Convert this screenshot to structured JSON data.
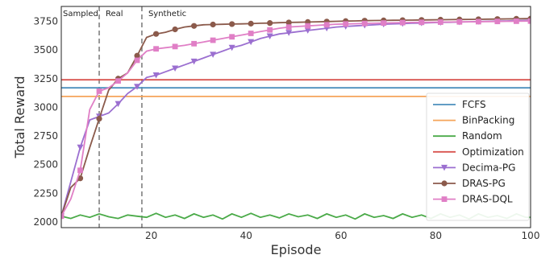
{
  "chart_data": {
    "type": "line",
    "title": "",
    "xlabel": "Episode",
    "ylabel": "Total Reward",
    "xlim": [
      1,
      100
    ],
    "ylim": [
      1950,
      3880
    ],
    "xticks": [
      20,
      40,
      60,
      80,
      100
    ],
    "yticks": [
      2000,
      2250,
      2500,
      2750,
      3000,
      3250,
      3500,
      3750
    ],
    "grid": false,
    "legend_position": "bottom-right",
    "phase_separators": [
      9,
      18
    ],
    "phase_labels": [
      "Sampled",
      "Real",
      "Synthetic"
    ],
    "series": [
      {
        "name": "FCFS",
        "color": "#4c8fbd",
        "marker": "none",
        "values_constant": 3170
      },
      {
        "name": "BinPacking",
        "color": "#f5a45a",
        "marker": "none",
        "values_constant": 3095
      },
      {
        "name": "Random",
        "color": "#4aaa48",
        "marker": "none",
        "x": [
          1,
          3,
          5,
          7,
          9,
          11,
          13,
          15,
          17,
          19,
          21,
          23,
          25,
          27,
          29,
          31,
          33,
          35,
          37,
          39,
          41,
          43,
          45,
          47,
          49,
          51,
          53,
          55,
          57,
          59,
          61,
          63,
          65,
          67,
          69,
          71,
          73,
          75,
          77,
          79,
          81,
          83,
          85,
          87,
          89,
          91,
          93,
          95,
          97,
          99,
          100
        ],
        "y": [
          2050,
          2030,
          2060,
          2040,
          2070,
          2045,
          2030,
          2060,
          2050,
          2040,
          2075,
          2040,
          2060,
          2030,
          2070,
          2040,
          2060,
          2025,
          2070,
          2040,
          2075,
          2040,
          2060,
          2035,
          2070,
          2045,
          2060,
          2030,
          2070,
          2040,
          2060,
          2025,
          2070,
          2040,
          2055,
          2030,
          2070,
          2040,
          2060,
          2030,
          2070,
          2040,
          2060,
          2025,
          2070,
          2040,
          2055,
          2030,
          2070,
          2040,
          2040
        ]
      },
      {
        "name": "Optimization",
        "color": "#d9534f",
        "marker": "none",
        "values_constant": 3240
      },
      {
        "name": "Decima-PG",
        "color": "#9b6fd0",
        "marker": "triangle-down",
        "x": [
          1,
          3,
          5,
          7,
          9,
          11,
          13,
          15,
          17,
          19,
          21,
          23,
          25,
          27,
          29,
          31,
          33,
          35,
          37,
          39,
          41,
          43,
          45,
          47,
          49,
          51,
          53,
          55,
          57,
          59,
          61,
          63,
          65,
          67,
          69,
          71,
          73,
          75,
          77,
          79,
          81,
          83,
          85,
          87,
          89,
          91,
          93,
          95,
          97,
          99,
          100
        ],
        "y": [
          2050,
          2350,
          2650,
          2890,
          2920,
          2950,
          3030,
          3120,
          3180,
          3260,
          3280,
          3310,
          3340,
          3370,
          3400,
          3430,
          3460,
          3490,
          3520,
          3540,
          3570,
          3600,
          3620,
          3640,
          3650,
          3660,
          3670,
          3680,
          3690,
          3700,
          3705,
          3710,
          3715,
          3720,
          3725,
          3728,
          3730,
          3733,
          3735,
          3738,
          3740,
          3742,
          3744,
          3746,
          3748,
          3750,
          3752,
          3754,
          3756,
          3758,
          3758
        ]
      },
      {
        "name": "DRAS-PG",
        "color": "#8b5a4b",
        "marker": "circle",
        "x": [
          1,
          3,
          5,
          7,
          9,
          11,
          13,
          15,
          17,
          19,
          21,
          23,
          25,
          27,
          29,
          31,
          33,
          35,
          37,
          39,
          41,
          43,
          45,
          47,
          49,
          51,
          53,
          55,
          57,
          59,
          61,
          63,
          65,
          67,
          69,
          71,
          73,
          75,
          77,
          79,
          81,
          83,
          85,
          87,
          89,
          91,
          93,
          95,
          97,
          99,
          100
        ],
        "y": [
          2050,
          2300,
          2380,
          2650,
          2900,
          3150,
          3250,
          3300,
          3450,
          3610,
          3640,
          3655,
          3680,
          3700,
          3710,
          3720,
          3722,
          3724,
          3726,
          3728,
          3730,
          3733,
          3735,
          3738,
          3740,
          3742,
          3744,
          3746,
          3748,
          3750,
          3752,
          3754,
          3756,
          3757,
          3758,
          3759,
          3760,
          3761,
          3762,
          3763,
          3764,
          3765,
          3766,
          3767,
          3768,
          3769,
          3770,
          3771,
          3772,
          3773,
          3773
        ]
      },
      {
        "name": "DRAS-DQL",
        "color": "#e07fc6",
        "marker": "square",
        "x": [
          1,
          3,
          5,
          7,
          9,
          11,
          13,
          15,
          17,
          19,
          21,
          23,
          25,
          27,
          29,
          31,
          33,
          35,
          37,
          39,
          41,
          43,
          45,
          47,
          49,
          51,
          53,
          55,
          57,
          59,
          61,
          63,
          65,
          67,
          69,
          71,
          73,
          75,
          77,
          79,
          81,
          83,
          85,
          87,
          89,
          91,
          93,
          95,
          97,
          99,
          100
        ],
        "y": [
          2050,
          2200,
          2450,
          2980,
          3140,
          3170,
          3230,
          3300,
          3410,
          3490,
          3510,
          3520,
          3530,
          3540,
          3555,
          3570,
          3585,
          3600,
          3615,
          3630,
          3645,
          3660,
          3675,
          3690,
          3700,
          3705,
          3710,
          3715,
          3720,
          3725,
          3727,
          3729,
          3731,
          3733,
          3735,
          3737,
          3739,
          3740,
          3741,
          3742,
          3743,
          3744,
          3745,
          3746,
          3747,
          3748,
          3749,
          3750,
          3751,
          3752,
          3752
        ]
      }
    ]
  }
}
